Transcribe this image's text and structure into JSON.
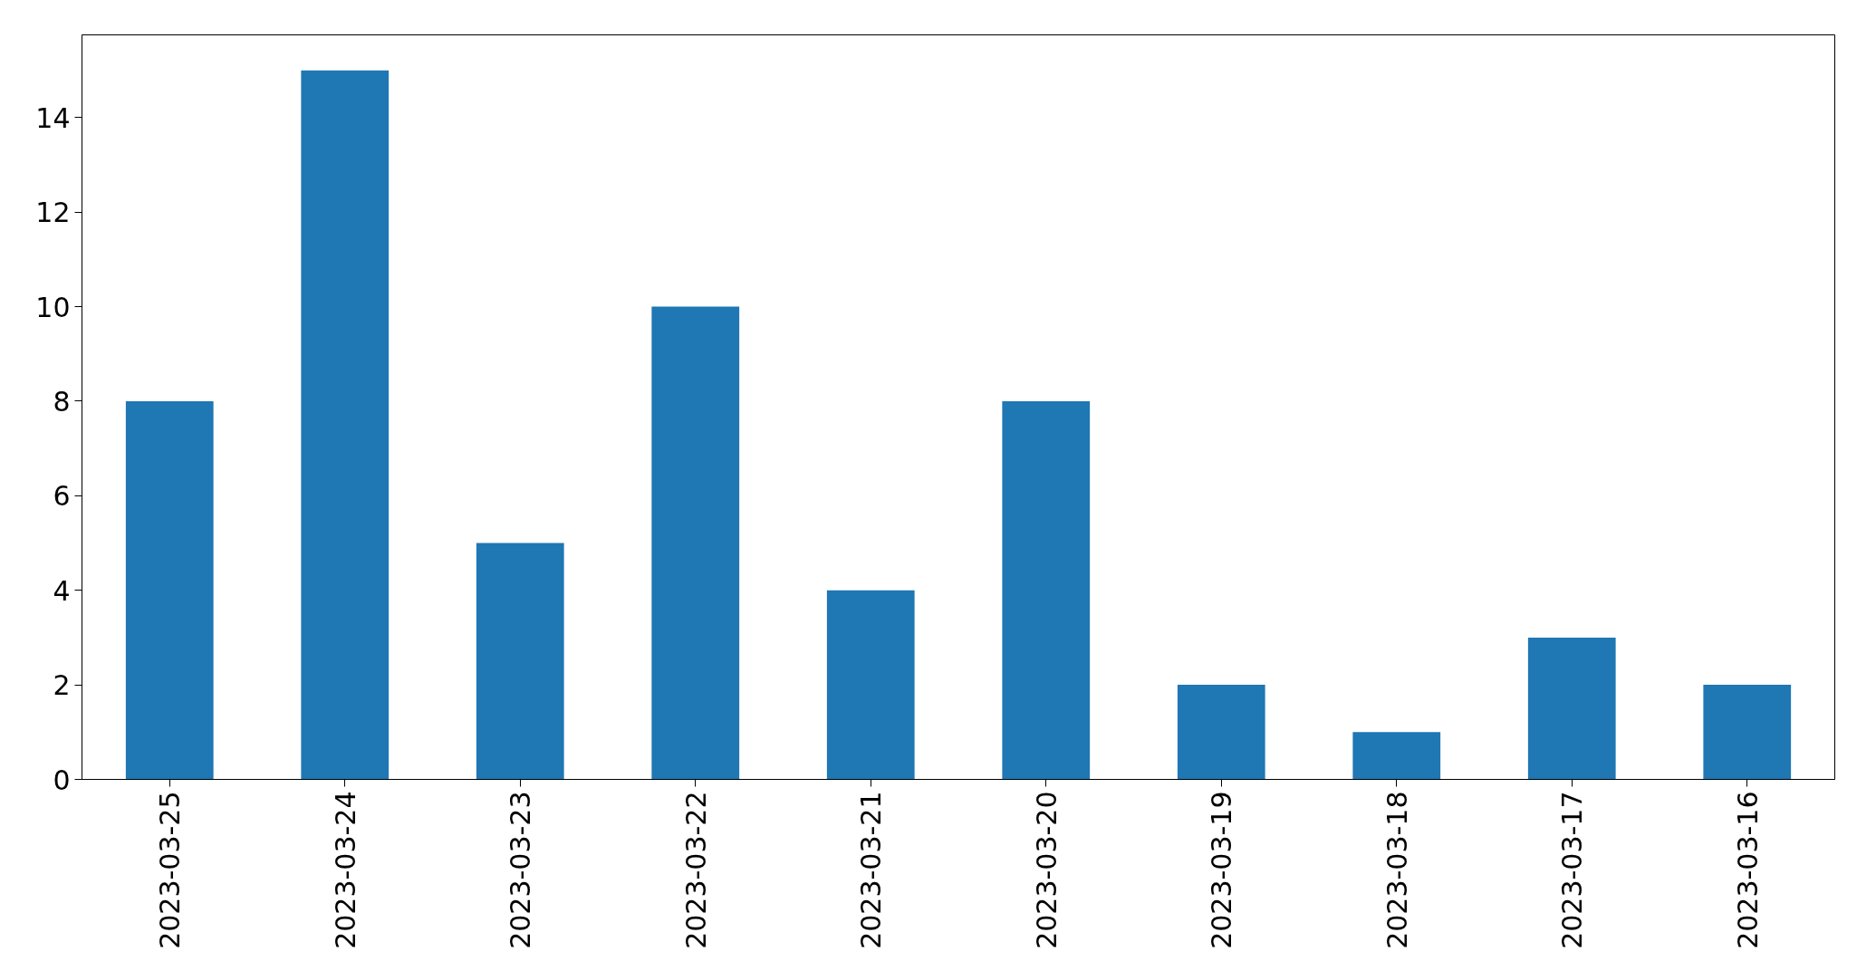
{
  "chart_data": {
    "type": "bar",
    "categories": [
      "2023-03-25",
      "2023-03-24",
      "2023-03-23",
      "2023-03-22",
      "2023-03-21",
      "2023-03-20",
      "2023-03-19",
      "2023-03-18",
      "2023-03-17",
      "2023-03-16"
    ],
    "values": [
      8,
      15,
      5,
      10,
      4,
      8,
      2,
      1,
      3,
      2
    ],
    "color": "#1f77b4",
    "ylim": [
      0,
      15.75
    ],
    "yticks": [
      0,
      2,
      4,
      6,
      8,
      10,
      12,
      14
    ],
    "grid": false
  }
}
